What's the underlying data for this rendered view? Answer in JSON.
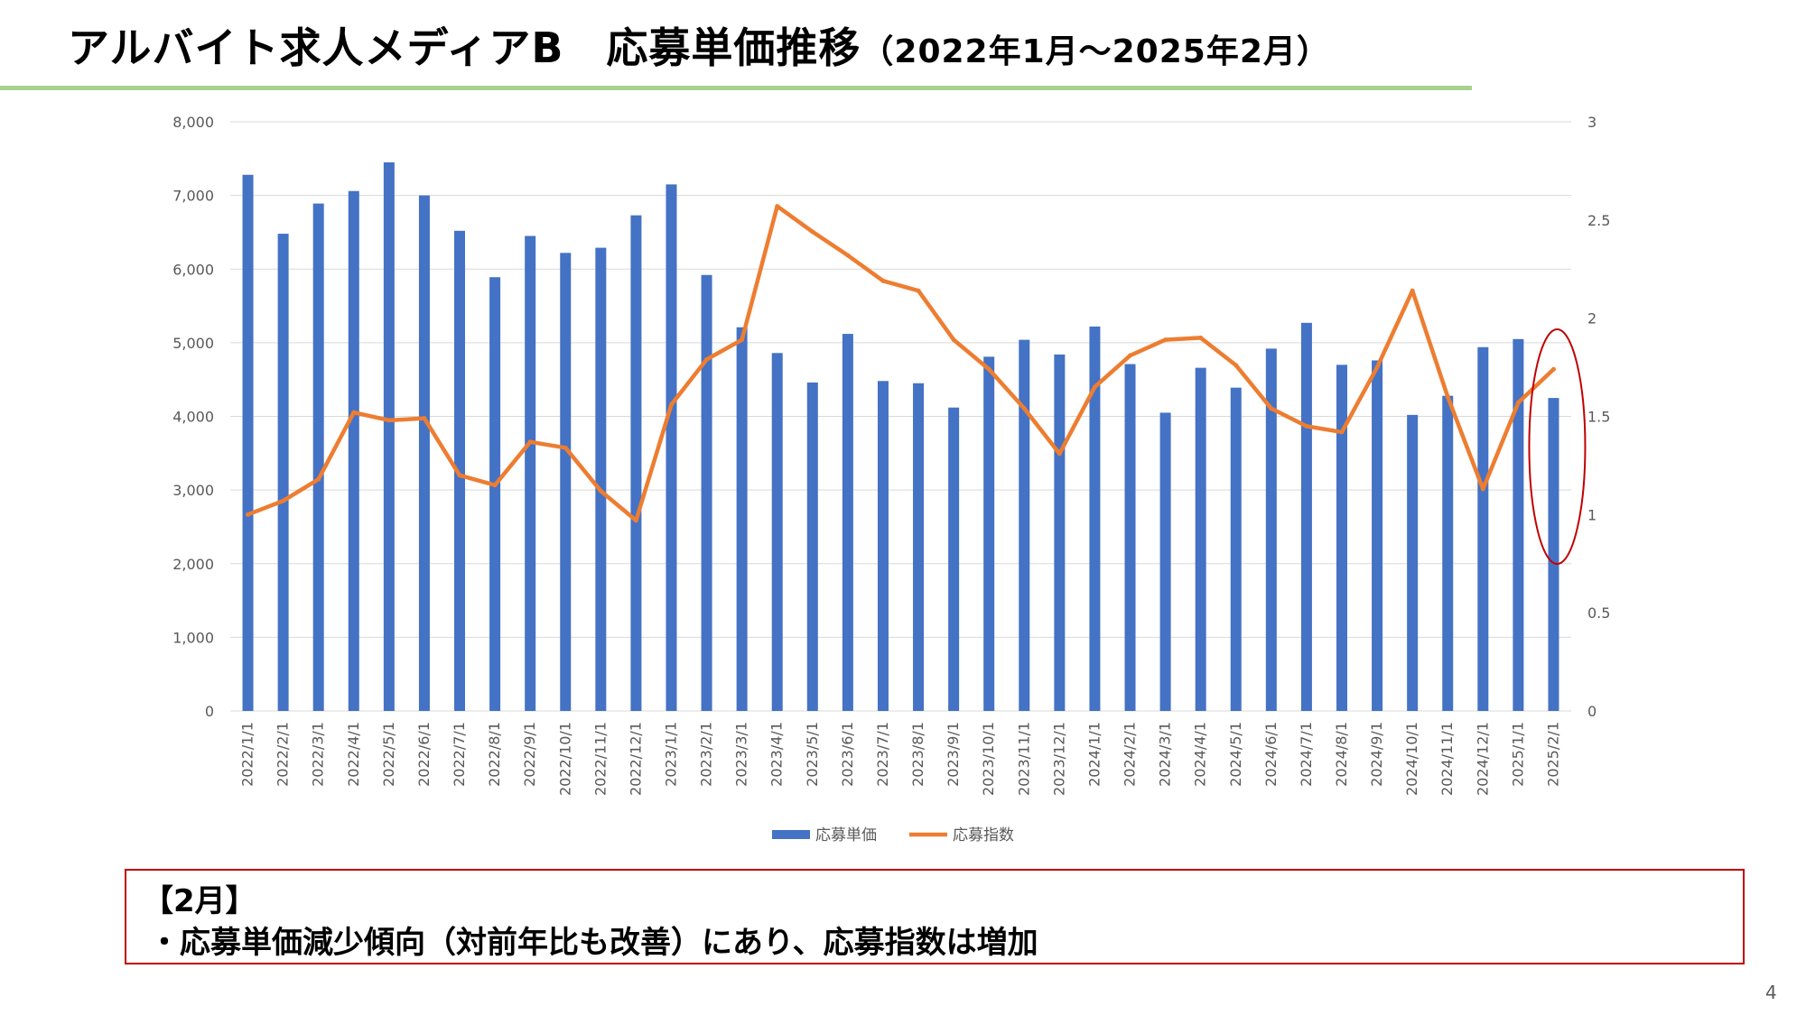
{
  "slide": {
    "title_main": "アルバイト求人メディアB　応募単価推移",
    "title_sub": "（2022年1月～2025年2月）",
    "page_number": "4"
  },
  "note": {
    "heading": "【2月】",
    "line": "・応募単価減少傾向（対前年比も改善）にあり、応募指数は増加"
  },
  "chart_data": {
    "type": "bar",
    "categories": [
      "2022/1/1",
      "2022/2/1",
      "2022/3/1",
      "2022/4/1",
      "2022/5/1",
      "2022/6/1",
      "2022/7/1",
      "2022/8/1",
      "2022/9/1",
      "2022/10/1",
      "2022/11/1",
      "2022/12/1",
      "2023/1/1",
      "2023/2/1",
      "2023/3/1",
      "2023/4/1",
      "2023/5/1",
      "2023/6/1",
      "2023/7/1",
      "2023/8/1",
      "2023/9/1",
      "2023/10/1",
      "2023/11/1",
      "2023/12/1",
      "2024/1/1",
      "2024/2/1",
      "2024/3/1",
      "2024/4/1",
      "2024/5/1",
      "2024/6/1",
      "2024/7/1",
      "2024/8/1",
      "2024/9/1",
      "2024/10/1",
      "2024/11/1",
      "2024/12/1",
      "2025/1/1",
      "2025/2/1"
    ],
    "series": [
      {
        "name": "応募単価",
        "type": "bar",
        "axis": "left",
        "color": "#4472c4",
        "values": [
          7280,
          6480,
          6890,
          7060,
          7450,
          7000,
          6520,
          5890,
          6450,
          6220,
          6290,
          6730,
          7150,
          5920,
          5210,
          4860,
          4460,
          5120,
          4480,
          4450,
          4120,
          4810,
          5040,
          4840,
          5220,
          4710,
          4050,
          4660,
          4390,
          4920,
          5270,
          4700,
          4760,
          4020,
          4280,
          4940,
          5050,
          4250
        ]
      },
      {
        "name": "応募指数",
        "type": "line",
        "axis": "right",
        "color": "#ed7d31",
        "values": [
          1.0,
          1.07,
          1.18,
          1.52,
          1.48,
          1.49,
          1.2,
          1.15,
          1.37,
          1.34,
          1.12,
          0.97,
          1.56,
          1.79,
          1.89,
          2.57,
          2.44,
          2.32,
          2.19,
          2.14,
          1.89,
          1.74,
          1.54,
          1.31,
          1.65,
          1.81,
          1.89,
          1.9,
          1.76,
          1.54,
          1.45,
          1.42,
          1.75,
          2.14,
          1.6,
          1.13,
          1.57,
          1.74
        ]
      }
    ],
    "y_left": {
      "min": 0,
      "max": 8000,
      "ticks": [
        "0",
        "1,000",
        "2,000",
        "3,000",
        "4,000",
        "5,000",
        "6,000",
        "7,000",
        "8,000"
      ]
    },
    "y_right": {
      "min": 0,
      "max": 3,
      "ticks": [
        "0",
        "0.5",
        "1",
        "1.5",
        "2",
        "2.5",
        "3"
      ]
    },
    "grid": true,
    "legend_position": "bottom",
    "highlight": {
      "category": "2025/2/1",
      "shape": "ellipse",
      "color": "#c00000"
    }
  }
}
